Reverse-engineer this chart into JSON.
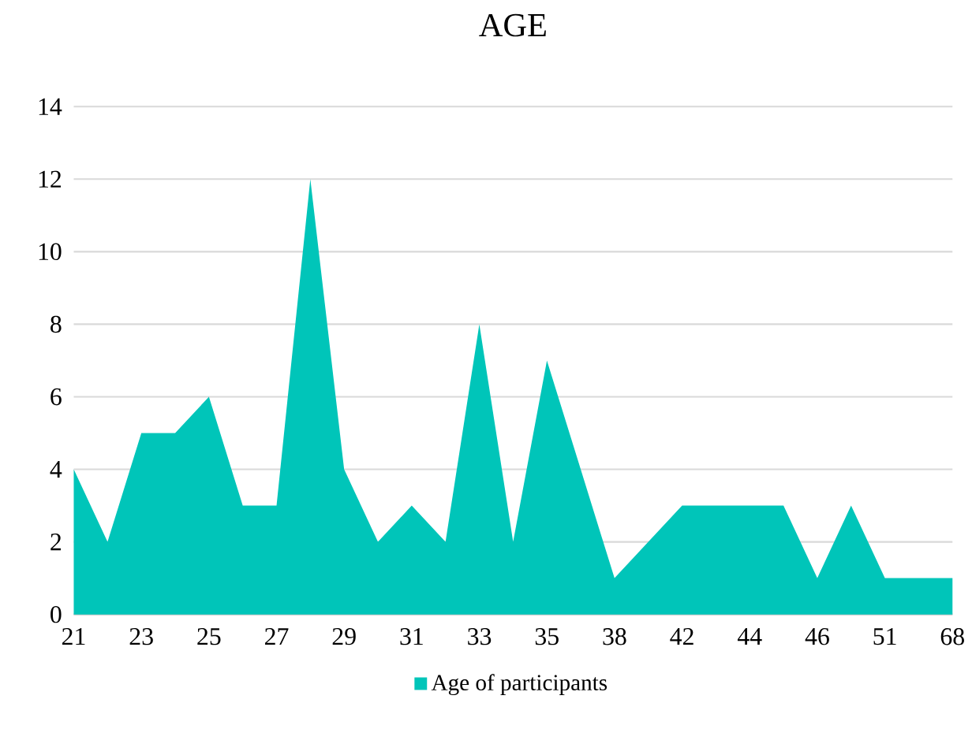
{
  "chart_data": {
    "type": "area",
    "title": "AGE",
    "categories": [
      "21",
      null,
      "23",
      null,
      "25",
      null,
      "27",
      null,
      "29",
      null,
      "31",
      null,
      "33",
      null,
      "35",
      null,
      "38",
      null,
      "42",
      null,
      "44",
      null,
      "46",
      null,
      "51",
      null,
      "68"
    ],
    "series": [
      {
        "name": "Age of participants",
        "color": "#00c5b9",
        "values": [
          4,
          2,
          5,
          5,
          6,
          3,
          3,
          12,
          4,
          2,
          3,
          2,
          8,
          2,
          7,
          4,
          1,
          2,
          3,
          3,
          3,
          3,
          1,
          3,
          1,
          1,
          1
        ]
      }
    ],
    "ylim": [
      0,
      14
    ],
    "yticks": [
      0,
      2,
      4,
      6,
      8,
      10,
      12,
      14
    ],
    "grid": "y",
    "legend": "bottom"
  }
}
